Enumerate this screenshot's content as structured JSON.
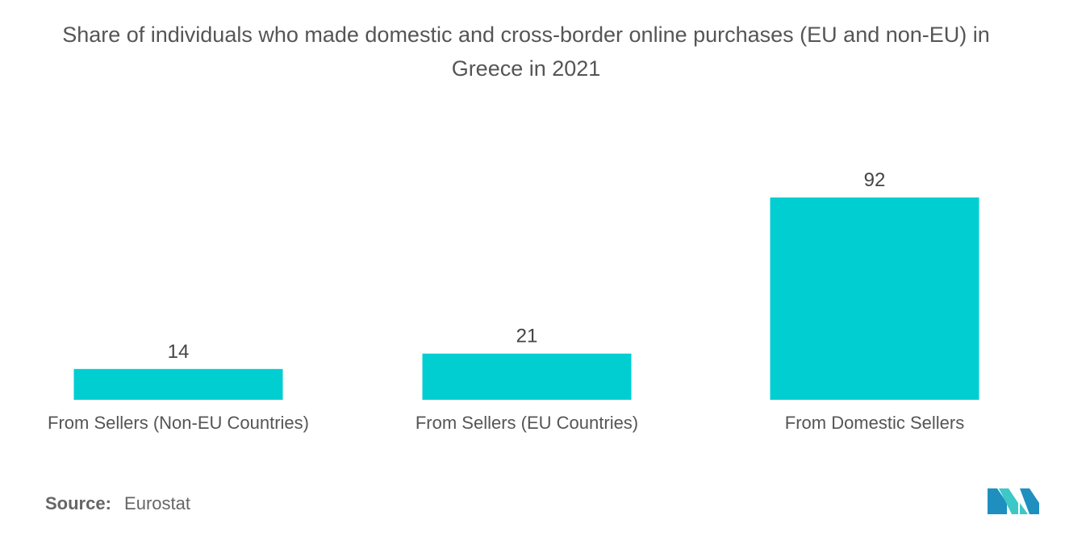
{
  "title": "Share of individuals who made domestic and cross-border online purchases (EU and non-EU) in Greece in 2021",
  "chart_data": {
    "type": "bar",
    "categories": [
      "From Sellers (Non-EU Countries)",
      "From Sellers (EU Countries)",
      "From Domestic Sellers"
    ],
    "values": [
      14,
      21,
      92
    ],
    "data_labels": [
      "14",
      "21",
      "92"
    ],
    "title": "Share of individuals who made domestic and cross-border online purchases (EU and non-EU) in Greece in 2021",
    "xlabel": "",
    "ylabel": "",
    "ylim": [
      0,
      92
    ],
    "grid": false,
    "legend": "none",
    "bar_color": "#00CED1"
  },
  "source": {
    "label": "Source:",
    "value": "Eurostat"
  },
  "logo": {
    "icon": "mordor-intelligence-logo-icon",
    "colors": [
      "#1f8fbf",
      "#3ec7c7"
    ]
  }
}
